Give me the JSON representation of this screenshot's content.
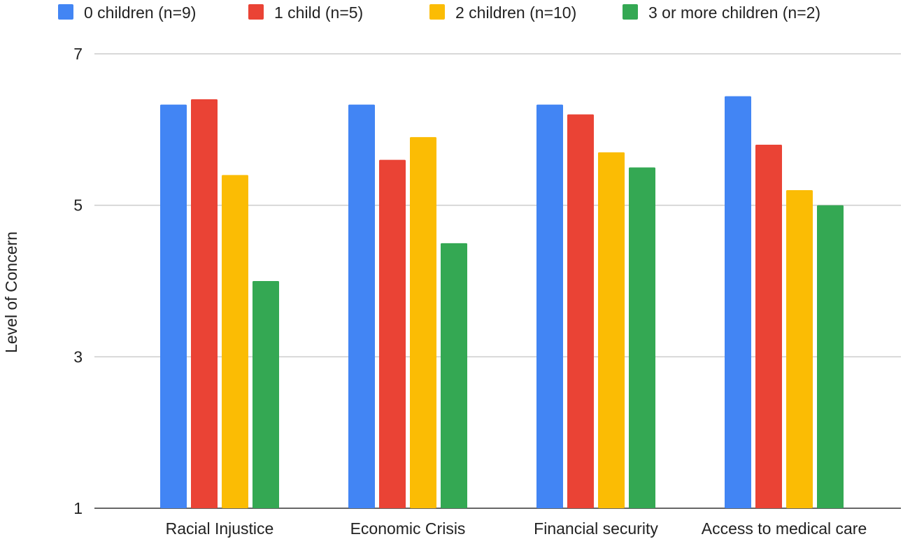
{
  "chart_data": {
    "type": "bar",
    "title": "",
    "xlabel": "",
    "ylabel": "Level of Concern",
    "ylim": [
      1,
      7
    ],
    "yticks": [
      1,
      3,
      5,
      7
    ],
    "grid": true,
    "legend_position": "top",
    "categories": [
      "Racial Injustice",
      "Economic Crisis",
      "Financial security",
      "Access to medical care"
    ],
    "series": [
      {
        "name": "0 children (n=9)",
        "color": "#4285f4",
        "values": [
          6.33,
          6.33,
          6.33,
          6.44
        ]
      },
      {
        "name": "1 child (n=5)",
        "color": "#ea4335",
        "values": [
          6.4,
          5.6,
          6.2,
          5.8
        ]
      },
      {
        "name": "2 children (n=10)",
        "color": "#fbbc04",
        "values": [
          5.4,
          5.9,
          5.7,
          5.2
        ]
      },
      {
        "name": "3 or more children (n=2)",
        "color": "#34a853",
        "values": [
          4.0,
          4.5,
          5.5,
          5.0
        ]
      }
    ]
  }
}
